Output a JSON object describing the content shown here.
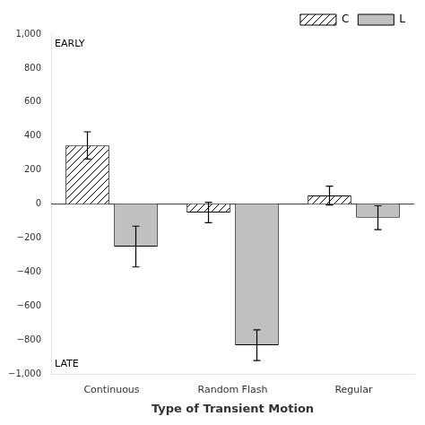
{
  "chart_data": {
    "type": "bar",
    "categories": [
      "Continuous",
      "Random Flash",
      "Regular"
    ],
    "series": [
      {
        "name": "C",
        "color": "#ffffff",
        "values": [
          345,
          -50,
          50
        ],
        "errors": [
          80,
          60,
          55
        ]
      },
      {
        "name": "L",
        "color": "#c0c0c0",
        "values": [
          -250,
          -830,
          -80
        ],
        "errors": [
          120,
          90,
          70
        ]
      }
    ],
    "xlabel": "Type of Transient Motion",
    "annotations": [
      "EARLY",
      "LATE"
    ],
    "ylim": [
      -1000,
      1000
    ],
    "yticks": [
      {
        "value": -1000,
        "label": "−1,000"
      },
      {
        "value": -800,
        "label": "−800"
      },
      {
        "value": -600,
        "label": "−600"
      },
      {
        "value": -400,
        "label": "−400"
      },
      {
        "value": -200,
        "label": "−200"
      },
      0,
      200,
      400,
      600,
      800,
      {
        "value": 1000,
        "label": "1,000"
      }
    ],
    "grid": false,
    "legend": "upper right"
  }
}
